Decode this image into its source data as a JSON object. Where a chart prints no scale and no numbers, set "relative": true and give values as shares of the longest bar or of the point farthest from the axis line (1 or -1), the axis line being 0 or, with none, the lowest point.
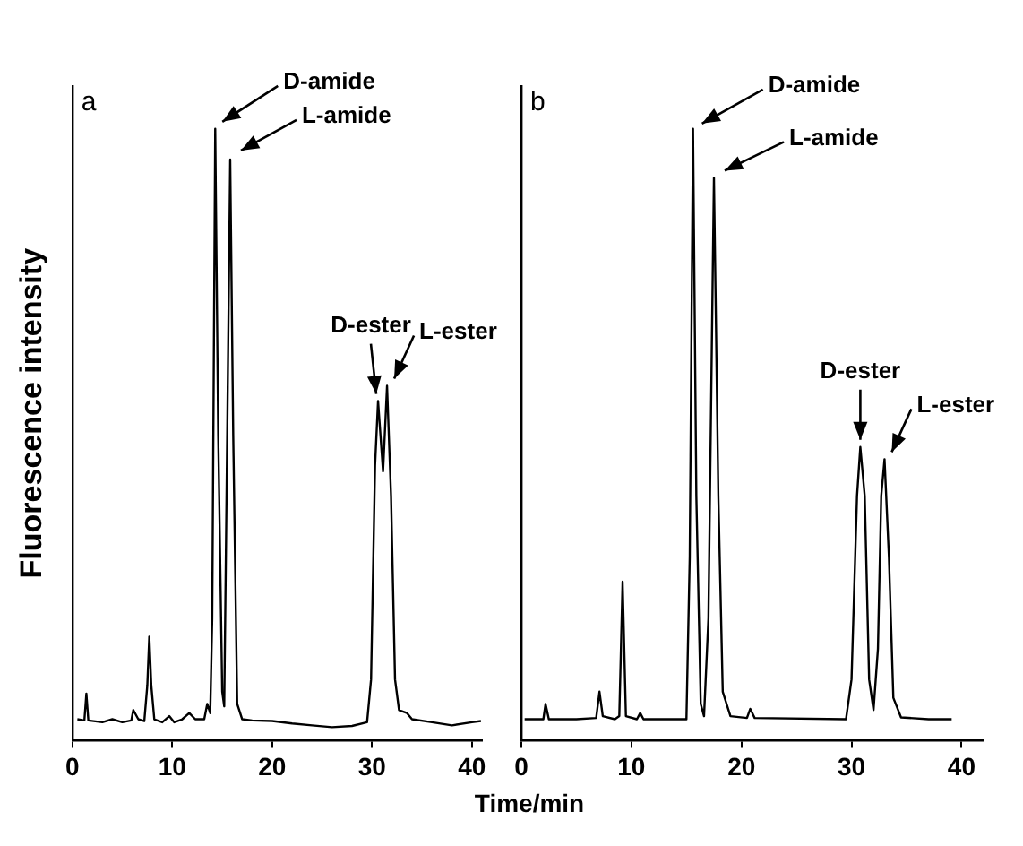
{
  "chart_data": [
    {
      "type": "line",
      "title": "a",
      "ylabel": "Fluorescence intensity",
      "relative": true,
      "xlim": [
        0,
        41
      ],
      "xticks": [
        0,
        10,
        20,
        30,
        40
      ],
      "grid": false,
      "legend": false,
      "marker": "none",
      "tick_labels": "x",
      "series": [
        {
          "color": "#000000",
          "x": [
            0.5,
            1.2,
            1.4,
            1.6,
            3,
            4,
            5,
            5.9,
            6.1,
            6.6,
            7.2,
            7.5,
            7.7,
            7.9,
            8.2,
            9,
            9.7,
            10.2,
            11,
            11.7,
            12.3,
            13.2,
            13.5,
            13.8,
            14.0,
            14.3,
            14.6,
            15.0,
            15.2,
            15.5,
            15.8,
            16.1,
            16.5,
            17,
            18,
            20,
            22,
            24,
            26,
            28,
            29.5,
            29.9,
            30.3,
            30.6,
            31.1,
            31.5,
            31.9,
            32.3,
            32.7,
            33.5,
            34,
            36,
            38,
            40,
            40.9
          ],
          "values": [
            0.035,
            0.033,
            0.077,
            0.033,
            0.03,
            0.035,
            0.03,
            0.033,
            0.05,
            0.035,
            0.032,
            0.09,
            0.17,
            0.09,
            0.035,
            0.03,
            0.04,
            0.03,
            0.035,
            0.045,
            0.035,
            0.035,
            0.06,
            0.045,
            0.2,
            1.0,
            0.5,
            0.08,
            0.056,
            0.5,
            0.95,
            0.5,
            0.06,
            0.035,
            0.033,
            0.032,
            0.028,
            0.025,
            0.022,
            0.024,
            0.03,
            0.1,
            0.45,
            0.555,
            0.44,
            0.58,
            0.4,
            0.1,
            0.05,
            0.045,
            0.035,
            0.03,
            0.025,
            0.03,
            0.032
          ]
        }
      ],
      "annotations": [
        {
          "text": "D-amide",
          "x": 14.3,
          "y": 1.0
        },
        {
          "text": "L-amide",
          "x": 15.8,
          "y": 0.95
        },
        {
          "text": "D-ester",
          "x": 30.6,
          "y": 0.555
        },
        {
          "text": "L-ester",
          "x": 31.5,
          "y": 0.58
        }
      ]
    },
    {
      "type": "line",
      "title": "b",
      "xlabel": "Time/min",
      "relative": true,
      "xlim": [
        0,
        42
      ],
      "xticks": [
        0,
        10,
        20,
        30,
        40
      ],
      "grid": false,
      "legend": false,
      "marker": "none",
      "tick_labels": "x",
      "series": [
        {
          "color": "#000000",
          "x": [
            0.3,
            2.0,
            2.2,
            2.5,
            5,
            6.8,
            7.1,
            7.4,
            8.5,
            8.9,
            9.2,
            9.5,
            10.5,
            10.8,
            11.1,
            15,
            15.3,
            15.6,
            15.9,
            16.3,
            16.6,
            17.0,
            17.5,
            17.9,
            18.3,
            19,
            20.5,
            20.8,
            21.2,
            29.5,
            30.0,
            30.5,
            30.8,
            31.2,
            31.6,
            32.0,
            32.4,
            32.7,
            33.0,
            33.4,
            33.8,
            34.5,
            37,
            39.1
          ],
          "values": [
            0.035,
            0.035,
            0.06,
            0.035,
            0.035,
            0.037,
            0.08,
            0.04,
            0.035,
            0.04,
            0.26,
            0.04,
            0.035,
            0.045,
            0.035,
            0.035,
            0.3,
            1.0,
            0.4,
            0.06,
            0.04,
            0.2,
            0.92,
            0.4,
            0.08,
            0.04,
            0.037,
            0.052,
            0.037,
            0.035,
            0.1,
            0.4,
            0.48,
            0.4,
            0.1,
            0.05,
            0.15,
            0.4,
            0.46,
            0.3,
            0.07,
            0.038,
            0.035,
            0.035
          ]
        }
      ],
      "annotations": [
        {
          "text": "D-amide",
          "x": 15.6,
          "y": 1.0
        },
        {
          "text": "L-amide",
          "x": 17.5,
          "y": 0.92
        },
        {
          "text": "D-ester",
          "x": 30.8,
          "y": 0.48
        },
        {
          "text": "L-ester",
          "x": 33.0,
          "y": 0.46
        }
      ]
    }
  ]
}
